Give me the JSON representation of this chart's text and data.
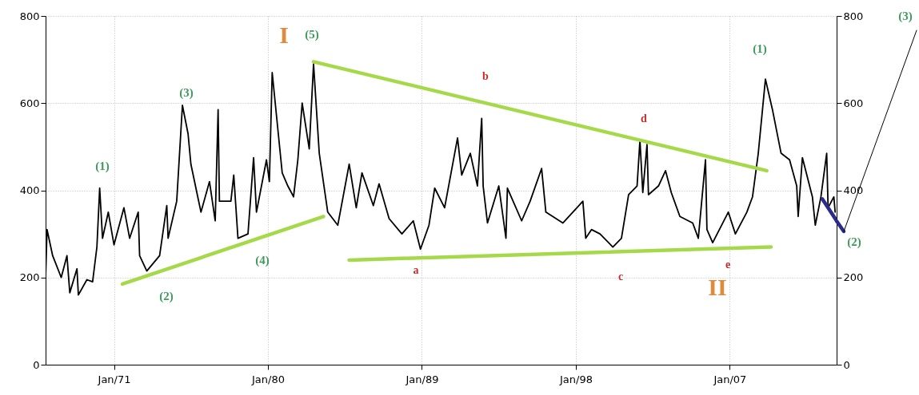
{
  "chart_data": {
    "type": "line",
    "xlim": [
      "1967-01",
      "2013-04"
    ],
    "xticks": [
      {
        "value": "1971-01",
        "label": "Jan/71"
      },
      {
        "value": "1980-01",
        "label": "Jan/80"
      },
      {
        "value": "1989-01",
        "label": "Jan/89"
      },
      {
        "value": "1998-01",
        "label": "Jan/98"
      },
      {
        "value": "2007-01",
        "label": "Jan/07"
      }
    ],
    "ylim": [
      0,
      800
    ],
    "yticks": [
      0,
      200,
      400,
      600,
      800
    ],
    "y2lim": [
      0,
      800
    ],
    "y2ticks": [
      0,
      200,
      400,
      600,
      800
    ],
    "grid": true,
    "line_style": "solid",
    "marker": "none",
    "series": [
      {
        "color": "#000000",
        "x": [
          "1967-01",
          "1967-02",
          "1967-06",
          "1967-12",
          "1968-04",
          "1968-06",
          "1968-11",
          "1968-12",
          "1969-06",
          "1969-10",
          "1970-01",
          "1970-03",
          "1970-05",
          "1970-09",
          "1971-01",
          "1971-08",
          "1971-12",
          "1972-06",
          "1972-07",
          "1972-12",
          "1973-09",
          "1974-02",
          "1974-03",
          "1974-09",
          "1975-01",
          "1975-05",
          "1975-07",
          "1976-02",
          "1976-08",
          "1976-12",
          "1977-02",
          "1977-03",
          "1977-11",
          "1978-01",
          "1978-04",
          "1978-11",
          "1979-03",
          "1979-05",
          "1979-12",
          "1980-02",
          "1980-04",
          "1980-11",
          "1981-03",
          "1981-07",
          "1981-10",
          "1982-01",
          "1982-06",
          "1982-09",
          "1983-01",
          "1983-07",
          "1984-02",
          "1984-10",
          "1985-03",
          "1985-07",
          "1986-03",
          "1986-07",
          "1987-02",
          "1987-11",
          "1988-07",
          "1988-12",
          "1989-06",
          "1989-10",
          "1990-05",
          "1991-02",
          "1991-05",
          "1991-11",
          "1992-04",
          "1992-07",
          "1992-08",
          "1992-11",
          "1993-07",
          "1993-12",
          "1994-01",
          "1994-11",
          "1995-05",
          "1996-01",
          "1996-04",
          "1997-04",
          "1998-06",
          "1998-08",
          "1998-12",
          "1999-06",
          "2000-03",
          "2000-09",
          "2001-02",
          "2001-08",
          "2001-10",
          "2001-12",
          "2002-03",
          "2002-04",
          "2002-11",
          "2003-04",
          "2003-08",
          "2004-02",
          "2004-11",
          "2005-03",
          "2005-08",
          "2005-09",
          "2006-01",
          "2006-12",
          "2007-05",
          "2008-01",
          "2008-05",
          "2008-09",
          "2009-02",
          "2009-07",
          "2010-01",
          "2010-07",
          "2010-12",
          "2011-01",
          "2011-04",
          "2011-11",
          "2012-01",
          "2012-05",
          "2012-09",
          "2012-10",
          "2013-02",
          "2013-03"
        ],
        "values": [
          200,
          310,
          250,
          200,
          250,
          165,
          220,
          160,
          195,
          190,
          270,
          405,
          290,
          350,
          275,
          360,
          290,
          350,
          250,
          215,
          250,
          365,
          290,
          375,
          595,
          530,
          460,
          350,
          420,
          330,
          585,
          375,
          375,
          435,
          290,
          300,
          475,
          350,
          470,
          420,
          670,
          440,
          410,
          385,
          470,
          600,
          495,
          690,
          485,
          350,
          320,
          460,
          360,
          440,
          365,
          415,
          335,
          300,
          330,
          265,
          320,
          405,
          360,
          520,
          435,
          485,
          410,
          565,
          410,
          325,
          410,
          290,
          405,
          330,
          375,
          450,
          350,
          325,
          375,
          290,
          310,
          300,
          270,
          290,
          390,
          410,
          515,
          395,
          505,
          390,
          410,
          445,
          395,
          340,
          325,
          290,
          470,
          310,
          280,
          350,
          300,
          350,
          385,
          485,
          655,
          585,
          485,
          470,
          410,
          340,
          475,
          385,
          320,
          385,
          485,
          360,
          385,
          350
        ]
      },
      {
        "type": "line",
        "color": "#a6d94a",
        "x": [
          "1971-07",
          "1983-04"
        ],
        "values": [
          185,
          340
        ]
      },
      {
        "type": "line",
        "color": "#a6d94a",
        "x": [
          "1982-09",
          "2009-03"
        ],
        "values": [
          695,
          445
        ]
      },
      {
        "type": "line",
        "color": "#a6d94a",
        "x": [
          "1984-10",
          "2009-06"
        ],
        "values": [
          240,
          270
        ]
      },
      {
        "type": "line",
        "color": "#2b2b8c",
        "x": [
          "2012-06",
          "2013-04"
        ],
        "values": [
          380,
          330
        ]
      }
    ],
    "annotations": [
      "(1)",
      "(2)",
      "(3)",
      "(4)",
      "(5)",
      "(1)",
      "a",
      "b",
      "c",
      "d",
      "e",
      "I",
      "II",
      "(2)",
      "(3)"
    ]
  }
}
